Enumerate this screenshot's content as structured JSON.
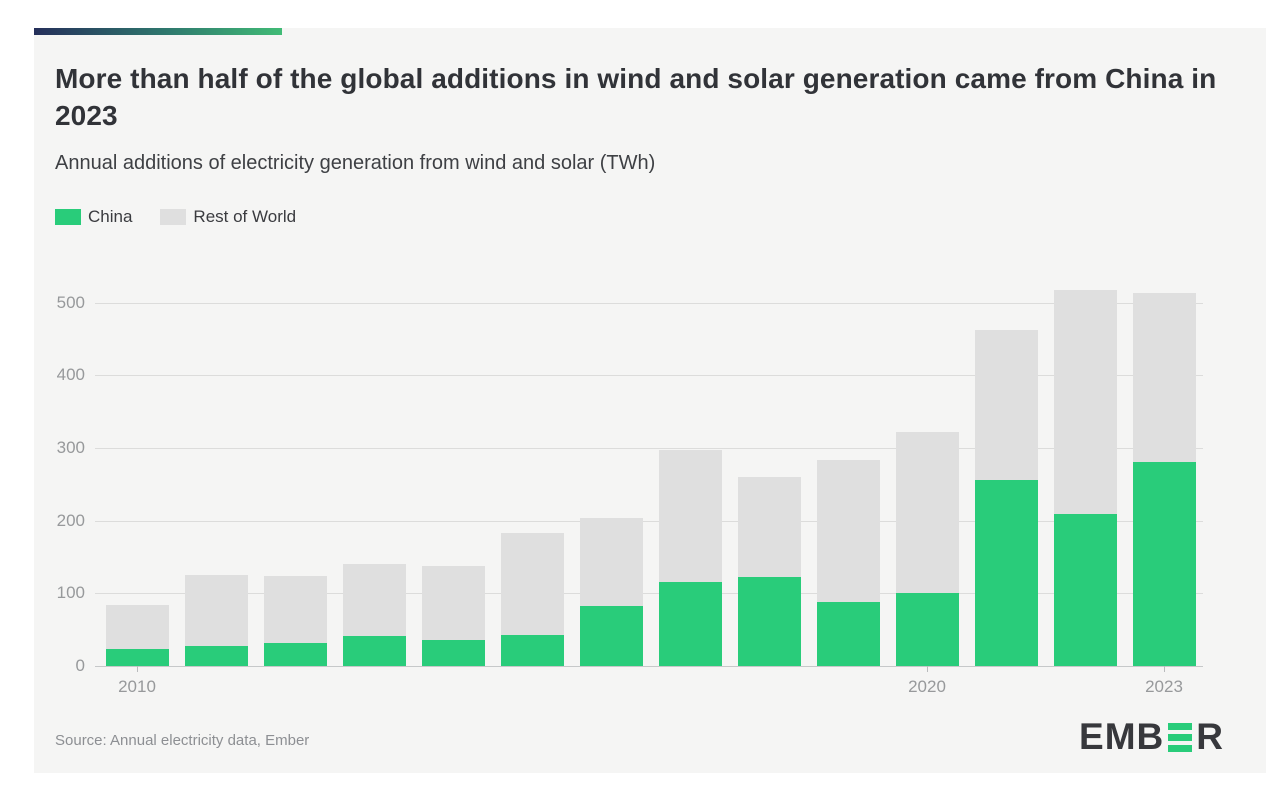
{
  "header": {
    "title": "More than half of the global additions in wind and solar generation came from China in 2023",
    "subtitle": "Annual additions of electricity generation from wind and solar (TWh)"
  },
  "legend": [
    {
      "label": "China",
      "color": "#29cc7a"
    },
    {
      "label": "Rest of World",
      "color": "#dfdfdf"
    }
  ],
  "chart_data": {
    "type": "bar",
    "stacked": true,
    "title": "More than half of the global additions in wind and solar generation came from China in 2023",
    "subtitle": "Annual additions of electricity generation from wind and solar (TWh)",
    "xlabel": "",
    "ylabel": "TWh",
    "ylim": [
      0,
      550
    ],
    "grid": "horizontal",
    "legend_position": "top-left",
    "categories": [
      2010,
      2011,
      2012,
      2013,
      2014,
      2015,
      2016,
      2017,
      2018,
      2019,
      2020,
      2021,
      2022,
      2023
    ],
    "series": [
      {
        "name": "China",
        "color": "#29cc7a",
        "values": [
          23,
          28,
          31,
          41,
          36,
          42,
          82,
          116,
          122,
          88,
          100,
          256,
          209,
          281
        ]
      },
      {
        "name": "Rest of World",
        "color": "#dfdfdf",
        "values": [
          60,
          98,
          92,
          99,
          102,
          140,
          121,
          182,
          137,
          196,
          221,
          206,
          308,
          232
        ]
      }
    ],
    "totals": [
      83,
      126,
      123,
      140,
      138,
      182,
      203,
      298,
      259,
      284,
      321,
      462,
      517,
      513
    ],
    "yticks": [
      0,
      100,
      200,
      300,
      400,
      500
    ],
    "xticks": [
      {
        "label": "2010",
        "index": 0
      },
      {
        "label": "2020",
        "index": 10
      },
      {
        "label": "2023",
        "index": 13
      }
    ]
  },
  "footer": {
    "source": "Source: Annual electricity data, Ember",
    "logo": {
      "name": "EMBER",
      "text_left": "EMB",
      "text_right": "R",
      "bars_color": "#29cc7a"
    }
  },
  "colors": {
    "background": "#ffffff",
    "card": "#f5f5f4",
    "china": "#29cc7a",
    "rest_of_world": "#dfdfdf",
    "gridline": "#dcdcdb",
    "axis_text": "#97999b",
    "title_text": "#313338",
    "gradient_start": "#252f5a",
    "gradient_end": "#41bb76"
  }
}
